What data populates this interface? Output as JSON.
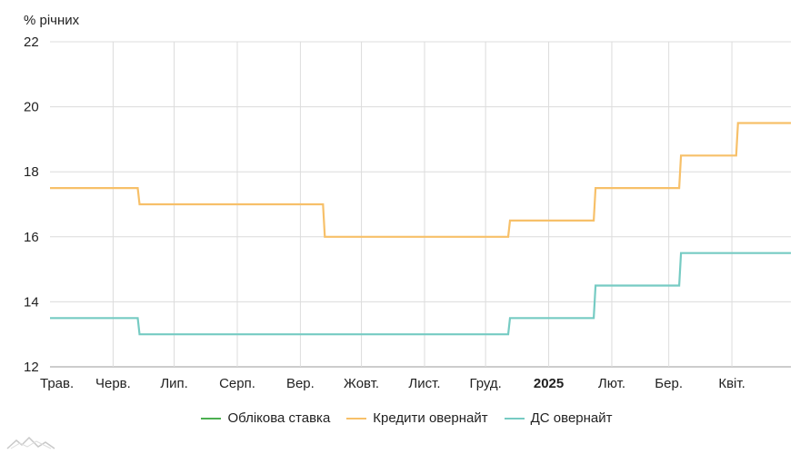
{
  "chart_data": {
    "type": "line",
    "ylabel": "% річних",
    "ylim": [
      12,
      22
    ],
    "yticks": [
      12,
      14,
      16,
      18,
      20,
      22
    ],
    "x_range": [
      "2024-05-01",
      "2025-04-30"
    ],
    "xticks": [
      {
        "label": "Трав.",
        "date": "2024-05-01",
        "bold": false
      },
      {
        "label": "Черв.",
        "date": "2024-06-01",
        "bold": false
      },
      {
        "label": "Лип.",
        "date": "2024-07-01",
        "bold": false
      },
      {
        "label": "Серп.",
        "date": "2024-08-01",
        "bold": false
      },
      {
        "label": "Вер.",
        "date": "2024-09-01",
        "bold": false
      },
      {
        "label": "Жовт.",
        "date": "2024-10-01",
        "bold": false
      },
      {
        "label": "Лист.",
        "date": "2024-11-01",
        "bold": false
      },
      {
        "label": "Груд.",
        "date": "2024-12-01",
        "bold": false
      },
      {
        "label": "2025",
        "date": "2025-01-01",
        "bold": true
      },
      {
        "label": "Лют.",
        "date": "2025-02-01",
        "bold": false
      },
      {
        "label": "Бер.",
        "date": "2025-03-01",
        "bold": false
      },
      {
        "label": "Квіт.",
        "date": "2025-04-01",
        "bold": false
      }
    ],
    "grid": true,
    "legend_position": "bottom",
    "series": [
      {
        "name": "Облікова ставка",
        "color": "#4caf50",
        "step": true,
        "points": []
      },
      {
        "name": "Кредити овернайт",
        "color": "#f7c069",
        "step": true,
        "points": [
          {
            "x": "2024-05-01",
            "y": 17.5
          },
          {
            "x": "2024-06-14",
            "y": 17.0
          },
          {
            "x": "2024-09-13",
            "y": 16.0
          },
          {
            "x": "2024-12-13",
            "y": 16.5
          },
          {
            "x": "2025-01-24",
            "y": 17.5
          },
          {
            "x": "2025-03-07",
            "y": 18.5
          },
          {
            "x": "2025-04-04",
            "y": 19.5
          },
          {
            "x": "2025-04-30",
            "y": 19.5
          }
        ]
      },
      {
        "name": "ДС овернайт",
        "color": "#76cbc3",
        "step": true,
        "points": [
          {
            "x": "2024-05-01",
            "y": 13.5
          },
          {
            "x": "2024-06-14",
            "y": 13.0
          },
          {
            "x": "2024-12-13",
            "y": 13.5
          },
          {
            "x": "2025-01-24",
            "y": 14.5
          },
          {
            "x": "2025-03-07",
            "y": 15.5
          },
          {
            "x": "2025-04-30",
            "y": 15.5
          }
        ]
      }
    ]
  }
}
